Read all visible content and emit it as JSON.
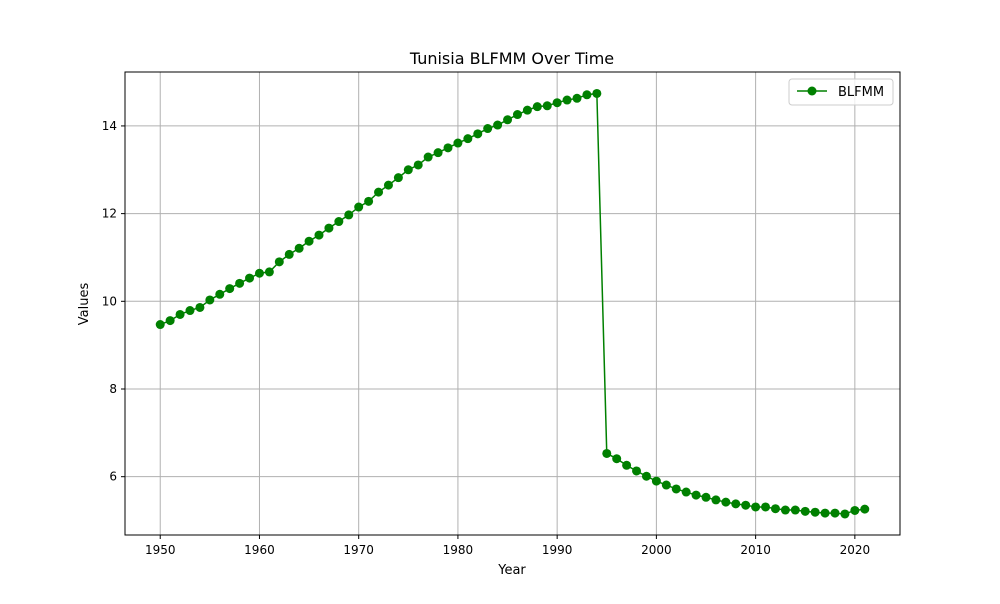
{
  "chart_data": {
    "type": "line",
    "title": "Tunisia BLFMM Over Time",
    "xlabel": "Year",
    "ylabel": "Values",
    "xlim": [
      1946.45,
      2024.55
    ],
    "ylim": [
      4.67,
      15.23
    ],
    "xticks": [
      1950,
      1960,
      1970,
      1980,
      1990,
      2000,
      2010,
      2020
    ],
    "yticks": [
      6,
      8,
      10,
      12,
      14
    ],
    "grid": true,
    "legend": {
      "placement": "top-right",
      "entries": [
        "BLFMM"
      ]
    },
    "series": [
      {
        "name": "BLFMM",
        "color": "#008000",
        "marker": "circle",
        "x": [
          1950,
          1951,
          1952,
          1953,
          1954,
          1955,
          1956,
          1957,
          1958,
          1959,
          1960,
          1961,
          1962,
          1963,
          1964,
          1965,
          1966,
          1967,
          1968,
          1969,
          1970,
          1971,
          1972,
          1973,
          1974,
          1975,
          1976,
          1977,
          1978,
          1979,
          1980,
          1981,
          1982,
          1983,
          1984,
          1985,
          1986,
          1987,
          1988,
          1989,
          1990,
          1991,
          1992,
          1993,
          1994,
          1995,
          1996,
          1997,
          1998,
          1999,
          2000,
          2001,
          2002,
          2003,
          2004,
          2005,
          2006,
          2007,
          2008,
          2009,
          2010,
          2011,
          2012,
          2013,
          2014,
          2015,
          2016,
          2017,
          2018,
          2019,
          2020,
          2021
        ],
        "y": [
          9.47,
          9.56,
          9.7,
          9.79,
          9.86,
          10.03,
          10.16,
          10.29,
          10.41,
          10.53,
          10.64,
          10.67,
          10.9,
          11.07,
          11.21,
          11.37,
          11.51,
          11.67,
          11.82,
          11.97,
          12.15,
          12.28,
          12.49,
          12.65,
          12.82,
          13.0,
          13.11,
          13.29,
          13.39,
          13.5,
          13.61,
          13.71,
          13.82,
          13.94,
          14.02,
          14.14,
          14.26,
          14.36,
          14.44,
          14.46,
          14.53,
          14.59,
          14.63,
          14.71,
          14.74,
          6.53,
          6.41,
          6.26,
          6.13,
          6.01,
          5.9,
          5.81,
          5.72,
          5.65,
          5.58,
          5.53,
          5.47,
          5.42,
          5.38,
          5.35,
          5.31,
          5.31,
          5.27,
          5.24,
          5.24,
          5.21,
          5.19,
          5.17,
          5.17,
          5.15,
          5.23,
          5.26
        ]
      }
    ]
  }
}
